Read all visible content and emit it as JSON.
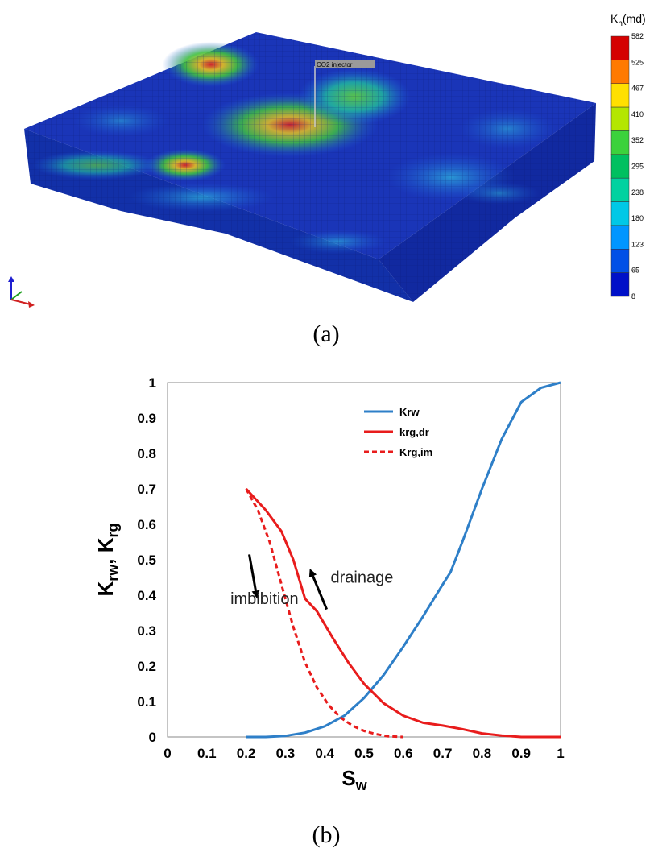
{
  "panel_a": {
    "caption": "(a)",
    "well_label": "CO2  injector",
    "colorbar": {
      "title_main": "K",
      "title_sub": "h",
      "title_unit": "(md)",
      "ticks": [
        "582",
        "525",
        "467",
        "410",
        "352",
        "295",
        "238",
        "180",
        "123",
        "65",
        "8"
      ],
      "colors": [
        "#d40000",
        "#ff7a00",
        "#ffe000",
        "#b4e600",
        "#3cd23c",
        "#00c060",
        "#00d2a0",
        "#00c8e6",
        "#0096ff",
        "#0050e6",
        "#0010c8"
      ]
    },
    "axis_colors": {
      "z": "#1f1fd0",
      "y": "#20a020",
      "x": "#d02020"
    }
  },
  "chart_data": {
    "type": "line",
    "caption": "(b)",
    "xlabel": "S",
    "xlabel_sub": "w",
    "ylabel_parts": [
      "K",
      "rw",
      ",  K",
      "rg"
    ],
    "xlim": [
      0,
      1
    ],
    "ylim": [
      0,
      1
    ],
    "xticks": [
      0,
      0.1,
      0.2,
      0.3,
      0.4,
      0.5,
      0.6,
      0.7,
      0.8,
      0.9,
      1
    ],
    "xtick_labels": [
      "0",
      "0.1",
      "0.2",
      "0.3",
      "0.4",
      "0.5",
      "0.6",
      "0.7",
      "0.8",
      "0.9",
      "1"
    ],
    "yticks": [
      0,
      0.1,
      0.2,
      0.3,
      0.4,
      0.5,
      0.6,
      0.7,
      0.8,
      0.9,
      1
    ],
    "ytick_labels": [
      "0",
      "0.1",
      "0.2",
      "0.3",
      "0.4",
      "0.5",
      "0.6",
      "0.7",
      "0.8",
      "0.9",
      "1"
    ],
    "series": [
      {
        "name": "Krw",
        "color": "#2e7fc8",
        "dash": "",
        "x": [
          0.2,
          0.25,
          0.3,
          0.35,
          0.4,
          0.45,
          0.5,
          0.55,
          0.6,
          0.65,
          0.7,
          0.72,
          0.75,
          0.8,
          0.85,
          0.9,
          0.95,
          1.0
        ],
        "y": [
          0.0,
          0.0,
          0.003,
          0.012,
          0.03,
          0.06,
          0.11,
          0.175,
          0.255,
          0.34,
          0.43,
          0.465,
          0.55,
          0.7,
          0.84,
          0.945,
          0.985,
          1.0
        ]
      },
      {
        "name": "krg,dr",
        "color": "#e81c1c",
        "dash": "",
        "x": [
          0.2,
          0.25,
          0.29,
          0.32,
          0.35,
          0.38,
          0.42,
          0.46,
          0.5,
          0.55,
          0.6,
          0.65,
          0.7,
          0.75,
          0.8,
          0.85,
          0.9,
          0.95,
          1.0
        ],
        "y": [
          0.7,
          0.64,
          0.58,
          0.5,
          0.39,
          0.355,
          0.28,
          0.21,
          0.15,
          0.095,
          0.06,
          0.04,
          0.032,
          0.022,
          0.01,
          0.004,
          0.0,
          0.0,
          0.0
        ]
      },
      {
        "name": "Krg,im",
        "color": "#e81c1c",
        "dash": "6,4",
        "x": [
          0.2,
          0.23,
          0.26,
          0.29,
          0.32,
          0.35,
          0.38,
          0.41,
          0.44,
          0.47,
          0.5,
          0.53,
          0.56,
          0.6
        ],
        "y": [
          0.7,
          0.64,
          0.55,
          0.43,
          0.31,
          0.21,
          0.14,
          0.09,
          0.055,
          0.032,
          0.017,
          0.008,
          0.002,
          0.0
        ]
      }
    ],
    "annotations": [
      {
        "text": "imbibition",
        "x": 0.16,
        "y": 0.375
      },
      {
        "text": "drainage",
        "x": 0.415,
        "y": 0.435
      }
    ],
    "arrows": [
      {
        "name": "imbibition-arrow",
        "from": [
          0.208,
          0.515
        ],
        "to": [
          0.228,
          0.39
        ]
      },
      {
        "name": "drainage-arrow",
        "from": [
          0.405,
          0.36
        ],
        "to": [
          0.362,
          0.475
        ]
      }
    ],
    "legend": {
      "position": "top-right"
    }
  }
}
